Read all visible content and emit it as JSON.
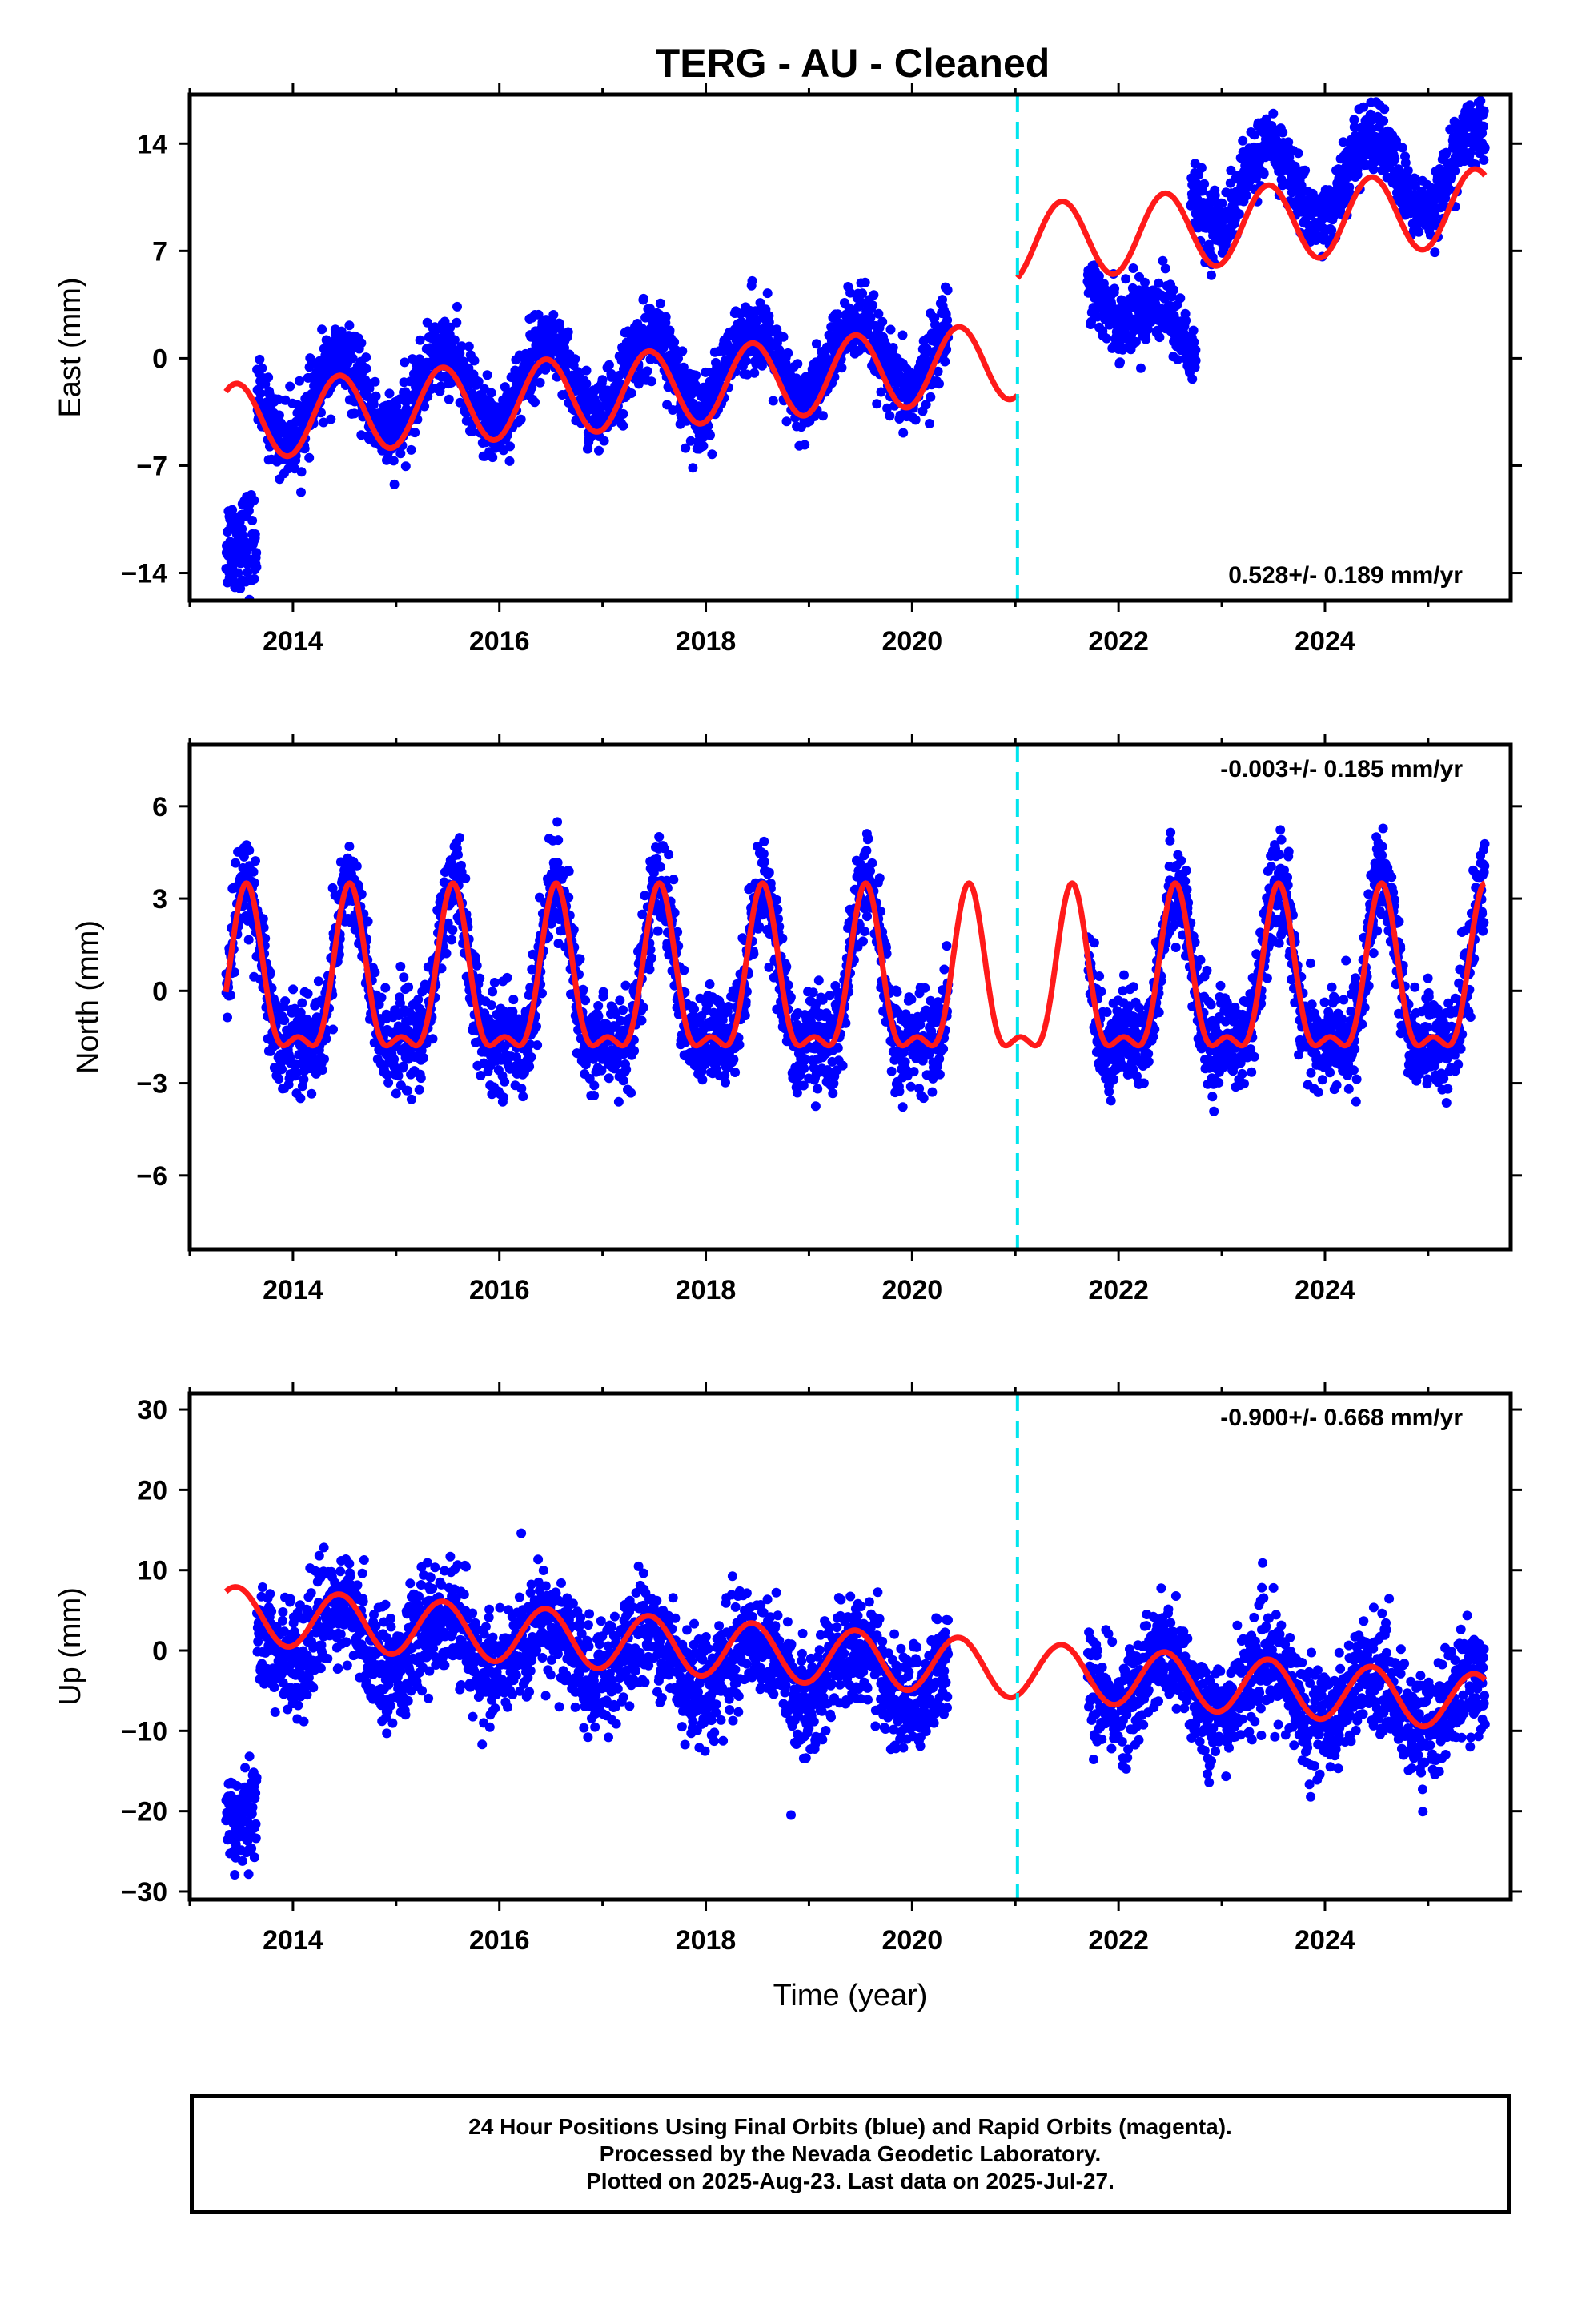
{
  "title": "TERG  - AU - Cleaned",
  "colors": {
    "data": "#0000ff",
    "model": "#ff1a1a",
    "break": "#00e5ee",
    "frame": "#000000"
  },
  "footer": {
    "line1": "24 Hour Positions Using Final Orbits (blue) and Rapid Orbits (magenta).",
    "line2": "Processed by the Nevada Geodetic Laboratory.",
    "line3": "Plotted on 2025-Aug-23. Last data on 2025-Jul-27."
  },
  "chart_data": [
    {
      "type": "scatter",
      "component": "east",
      "ylabel": "East (mm)",
      "xlabel": "",
      "xlim": [
        2013.0,
        2025.8
      ],
      "ylim": [
        -15.8,
        17.2
      ],
      "xticks": [
        2014,
        2016,
        2018,
        2020,
        2022,
        2024
      ],
      "yticks": [
        -14,
        -7,
        0,
        7,
        14
      ],
      "ytick_labels": [
        "−14",
        "−7",
        "0",
        "7",
        "14"
      ],
      "rate_label": "0.528+/- 0.189 mm/yr",
      "rate_label_position": "bottom-right",
      "break_epoch": 2021.02,
      "series": [
        {
          "role": "data",
          "values_segments": [
            {
              "x": [
                2013.35,
                2013.65
              ],
              "y": [
                -12,
                -12
              ],
              "spread": 3
            },
            {
              "x": [
                2013.65,
                2020.35
              ],
              "trend": 0.5,
              "offset": -3,
              "amp": 2.5,
              "spread": 2.2
            },
            {
              "x": [
                2021.7,
                2022.75
              ],
              "trend": -5,
              "offset": 5.5,
              "amp": 1.5,
              "spread": 2.0
            },
            {
              "x": [
                2022.7,
                2025.55
              ],
              "trend": 0.5,
              "offset": 11,
              "amp": 2.5,
              "spread": 2.0
            }
          ]
        },
        {
          "role": "model",
          "segments": [
            {
              "x": [
                2013.35,
                2021.02
              ],
              "y0": -4.2,
              "rate": 0.528,
              "amp": 2.5
            },
            {
              "x": [
                2021.02,
                2025.55
              ],
              "y0": 7.5,
              "rate": 0.528,
              "amp": 2.5
            }
          ]
        }
      ]
    },
    {
      "type": "scatter",
      "component": "north",
      "ylabel": "North (mm)",
      "xlabel": "",
      "xlim": [
        2013.0,
        2025.8
      ],
      "ylim": [
        -8.4,
        8.0
      ],
      "xticks": [
        2014,
        2016,
        2018,
        2020,
        2022,
        2024
      ],
      "yticks": [
        -6,
        -3,
        0,
        3,
        6
      ],
      "ytick_labels": [
        "−6",
        "−3",
        "0",
        "3",
        "6"
      ],
      "rate_label": "-0.003+/- 0.185 mm/yr",
      "rate_label_position": "top-right",
      "break_epoch": 2021.02,
      "series": [
        {
          "role": "data",
          "values_segments": [
            {
              "x": [
                2013.35,
                2020.35
              ],
              "annual": 2.5,
              "semi": 1.0,
              "spread": 1.4
            },
            {
              "x": [
                2021.7,
                2025.55
              ],
              "annual": 2.5,
              "semi": 1.0,
              "spread": 1.4
            }
          ]
        },
        {
          "role": "model",
          "segments": [
            {
              "x": [
                2013.35,
                2025.55
              ],
              "annual": 2.5,
              "semi": 1.0,
              "offset": 0.0
            }
          ]
        }
      ]
    },
    {
      "type": "scatter",
      "component": "up",
      "ylabel": "Up (mm)",
      "xlabel": "Time (year)",
      "xlim": [
        2013.0,
        2025.8
      ],
      "ylim": [
        -31.0,
        32.0
      ],
      "xticks": [
        2014,
        2016,
        2018,
        2020,
        2022,
        2024
      ],
      "yticks": [
        -30,
        -20,
        -10,
        0,
        10,
        20,
        30
      ],
      "ytick_labels": [
        "−30",
        "−20",
        "−10",
        "0",
        "10",
        "20",
        "30"
      ],
      "rate_label": "-0.900+/- 0.668 mm/yr",
      "rate_label_position": "top-right",
      "break_epoch": 2021.02,
      "series": [
        {
          "role": "data",
          "values_segments": [
            {
              "x": [
                2013.35,
                2013.65
              ],
              "y": [
                -20,
                -20
              ],
              "spread": 6
            },
            {
              "x": [
                2013.65,
                2020.35
              ],
              "trend": -0.9,
              "offset": 2.5,
              "amp": 3.5,
              "spread": 6
            },
            {
              "x": [
                2021.7,
                2025.55
              ],
              "trend": -0.9,
              "offset": -3.5,
              "amp": 3.5,
              "spread": 6
            }
          ]
        },
        {
          "role": "model",
          "segments": [
            {
              "x": [
                2013.35,
                2025.55
              ],
              "y0": 4.5,
              "rate": -0.9,
              "amp": 3.5
            }
          ]
        }
      ]
    }
  ]
}
